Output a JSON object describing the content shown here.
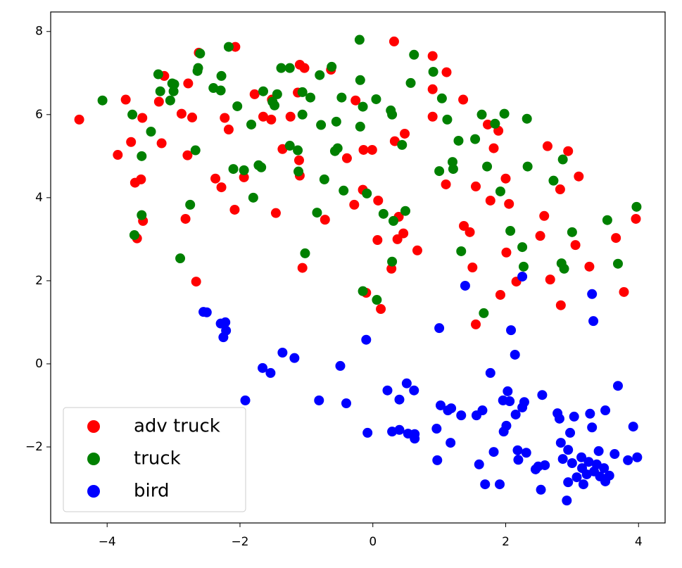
{
  "chart_data": {
    "type": "scatter",
    "xlim": [
      -4.85,
      4.4
    ],
    "ylim": [
      -3.83,
      8.47
    ],
    "xticks": [
      {
        "value": -4,
        "label": "−4"
      },
      {
        "value": -2,
        "label": "−2"
      },
      0,
      2,
      4
    ],
    "yticks": [
      {
        "value": -2,
        "label": "−2"
      },
      0,
      2,
      4,
      6,
      8
    ],
    "legend": "lower left",
    "series": [
      {
        "name": "adv truck",
        "color": "#ff0000",
        "x": [
          -4.42,
          -3.72,
          -3.84,
          -3.64,
          -3.58,
          -3.49,
          -3.47,
          -3.46,
          -3.55,
          -3.18,
          -3.14,
          -3.22,
          -2.88,
          -2.78,
          -2.72,
          -2.79,
          -2.82,
          -2.66,
          -2.62,
          -2.37,
          -2.28,
          -2.23,
          -2.17,
          -2.07,
          -2.08,
          -1.94,
          -1.78,
          -1.65,
          -1.53,
          -1.52,
          -1.46,
          -1.36,
          -1.24,
          -1.13,
          -1.1,
          -1.03,
          -1.11,
          -1.1,
          -1.06,
          -0.72,
          -0.63,
          -0.39,
          -0.28,
          -0.26,
          -0.14,
          -0.15,
          -0.01,
          -0.1,
          0.08,
          0.07,
          0.12,
          0.28,
          0.33,
          0.32,
          0.37,
          0.46,
          0.39,
          0.48,
          0.67,
          0.9,
          0.9,
          0.9,
          1.11,
          1.1,
          1.36,
          1.37,
          1.46,
          1.5,
          1.55,
          1.55,
          1.73,
          1.77,
          1.82,
          1.89,
          1.92,
          2.0,
          2.01,
          2.05,
          2.16,
          2.52,
          2.58,
          2.63,
          2.67,
          2.82,
          2.83,
          2.94,
          3.05,
          3.1,
          3.26,
          3.66,
          3.78,
          3.96
        ],
        "y": [
          5.88,
          6.36,
          5.03,
          5.34,
          4.36,
          4.44,
          5.92,
          3.44,
          3.02,
          5.31,
          6.93,
          6.31,
          6.02,
          6.75,
          5.93,
          5.02,
          3.49,
          1.98,
          7.49,
          4.46,
          4.25,
          5.92,
          5.64,
          7.63,
          3.71,
          4.49,
          6.49,
          5.95,
          5.88,
          6.36,
          3.63,
          5.17,
          5.95,
          6.53,
          7.2,
          7.12,
          4.9,
          4.53,
          2.31,
          3.47,
          7.08,
          4.95,
          3.83,
          6.34,
          5.15,
          4.19,
          5.15,
          1.71,
          3.93,
          2.98,
          1.32,
          2.29,
          5.36,
          7.76,
          3.0,
          3.14,
          3.54,
          5.54,
          2.73,
          7.41,
          6.61,
          5.95,
          7.02,
          4.32,
          6.36,
          3.32,
          3.17,
          2.32,
          0.95,
          4.27,
          5.76,
          3.93,
          5.19,
          5.61,
          1.66,
          4.46,
          2.68,
          3.85,
          1.98,
          3.08,
          3.56,
          5.24,
          2.03,
          4.2,
          1.41,
          5.12,
          2.86,
          4.51,
          2.34,
          3.03,
          1.73,
          3.49
        ]
      },
      {
        "name": "truck",
        "color": "#008000",
        "x": [
          -4.07,
          -3.62,
          -3.59,
          -3.48,
          -3.48,
          -3.34,
          -3.23,
          -3.2,
          -3.05,
          -3.02,
          -3.0,
          -2.99,
          -2.9,
          -2.75,
          -2.67,
          -2.63,
          -2.64,
          -2.6,
          -2.4,
          -2.29,
          -2.28,
          -2.17,
          -2.1,
          -2.04,
          -1.94,
          -1.83,
          -1.8,
          -1.72,
          -1.68,
          -1.65,
          -1.51,
          -1.48,
          -1.44,
          -1.38,
          -1.25,
          -1.25,
          -1.13,
          -1.12,
          -1.06,
          -1.06,
          -1.02,
          -0.94,
          -0.84,
          -0.8,
          -0.78,
          -0.73,
          -0.62,
          -0.57,
          -0.55,
          -0.53,
          -0.47,
          -0.44,
          -0.2,
          -0.19,
          -0.19,
          -0.15,
          -0.15,
          -0.09,
          0.05,
          0.06,
          0.16,
          0.27,
          0.29,
          0.29,
          0.31,
          0.44,
          0.49,
          0.57,
          0.62,
          0.91,
          1.0,
          1.04,
          1.12,
          1.2,
          1.21,
          1.29,
          1.33,
          1.54,
          1.64,
          1.67,
          1.72,
          1.84,
          1.92,
          1.98,
          2.07,
          2.25,
          2.27,
          2.32,
          2.33,
          2.72,
          2.84,
          2.86,
          2.88,
          3.0,
          3.53,
          3.69,
          3.97
        ],
        "y": [
          6.34,
          6.0,
          3.1,
          5.0,
          3.58,
          5.59,
          6.97,
          6.56,
          6.34,
          6.75,
          6.56,
          6.73,
          2.54,
          3.83,
          5.14,
          7.12,
          7.05,
          7.47,
          6.64,
          6.58,
          6.93,
          7.63,
          4.69,
          6.2,
          4.66,
          5.76,
          4.0,
          4.78,
          4.73,
          6.56,
          6.31,
          6.22,
          6.49,
          7.12,
          5.25,
          7.12,
          5.14,
          4.63,
          6.54,
          6.0,
          2.66,
          6.41,
          3.64,
          6.95,
          5.75,
          4.44,
          7.15,
          5.12,
          5.83,
          5.19,
          6.41,
          4.17,
          7.8,
          6.83,
          5.71,
          6.19,
          1.75,
          4.1,
          6.37,
          1.54,
          3.61,
          6.1,
          6.0,
          2.46,
          3.44,
          5.27,
          3.68,
          6.76,
          7.44,
          7.03,
          4.64,
          6.39,
          5.88,
          4.86,
          4.69,
          5.37,
          2.71,
          5.41,
          6.0,
          1.22,
          4.75,
          5.78,
          4.15,
          6.02,
          3.2,
          2.81,
          2.34,
          5.9,
          4.75,
          4.41,
          2.42,
          4.92,
          2.29,
          3.17,
          3.46,
          2.41,
          3.78
        ]
      },
      {
        "name": "bird",
        "color": "#0000ff",
        "x": [
          2.25,
          1.39,
          3.3,
          3.32,
          1.0,
          2.08,
          -2.55,
          -2.5,
          -2.29,
          -2.22,
          -2.21,
          -2.25,
          -0.1,
          -1.36,
          -1.18,
          -1.66,
          -1.54,
          -0.49,
          -1.92,
          -0.81,
          -0.4,
          -0.08,
          0.22,
          0.4,
          0.51,
          0.62,
          0.29,
          0.4,
          0.53,
          0.63,
          0.63,
          0.96,
          0.97,
          1.02,
          1.13,
          1.18,
          1.17,
          1.33,
          1.56,
          1.6,
          1.65,
          1.69,
          1.77,
          1.82,
          1.91,
          1.96,
          1.97,
          2.01,
          2.03,
          2.06,
          2.14,
          2.15,
          2.18,
          2.19,
          2.25,
          2.28,
          2.31,
          2.45,
          2.49,
          2.53,
          2.55,
          2.59,
          2.78,
          2.81,
          2.83,
          2.86,
          2.92,
          2.94,
          2.94,
          2.97,
          3.0,
          3.03,
          3.07,
          3.14,
          3.15,
          3.17,
          3.22,
          3.25,
          3.27,
          3.3,
          3.33,
          3.37,
          3.42,
          3.4,
          3.48,
          3.5,
          3.5,
          3.56,
          3.64,
          3.69,
          3.84,
          3.92,
          3.98
        ],
        "y": [
          2.1,
          1.88,
          1.68,
          1.03,
          0.86,
          0.81,
          1.25,
          1.24,
          0.97,
          1.0,
          0.8,
          0.64,
          0.58,
          0.27,
          0.14,
          -0.1,
          -0.22,
          -0.05,
          -0.88,
          -0.88,
          -0.95,
          -1.66,
          -0.64,
          -0.86,
          -0.47,
          -0.64,
          -1.63,
          -1.59,
          -1.68,
          -1.8,
          -1.69,
          -1.56,
          -2.32,
          -1.0,
          -1.12,
          -1.07,
          -1.9,
          -1.24,
          -1.24,
          -2.42,
          -1.12,
          -2.9,
          -0.22,
          -2.12,
          -2.9,
          -0.88,
          -1.63,
          -1.49,
          -0.66,
          -0.9,
          0.22,
          -1.22,
          -2.08,
          -2.31,
          -1.05,
          -0.92,
          -2.14,
          -2.54,
          -2.47,
          -3.03,
          -0.75,
          -2.44,
          -1.19,
          -1.32,
          -1.9,
          -2.29,
          -3.29,
          -2.07,
          -2.85,
          -1.66,
          -2.39,
          -1.27,
          -2.73,
          -2.25,
          -2.51,
          -2.9,
          -2.66,
          -2.36,
          -1.2,
          -1.53,
          -2.59,
          -2.42,
          -2.71,
          -2.1,
          -2.51,
          -2.83,
          -1.12,
          -2.69,
          -2.17,
          -0.53,
          -2.32,
          -1.51,
          -2.25
        ]
      }
    ]
  }
}
